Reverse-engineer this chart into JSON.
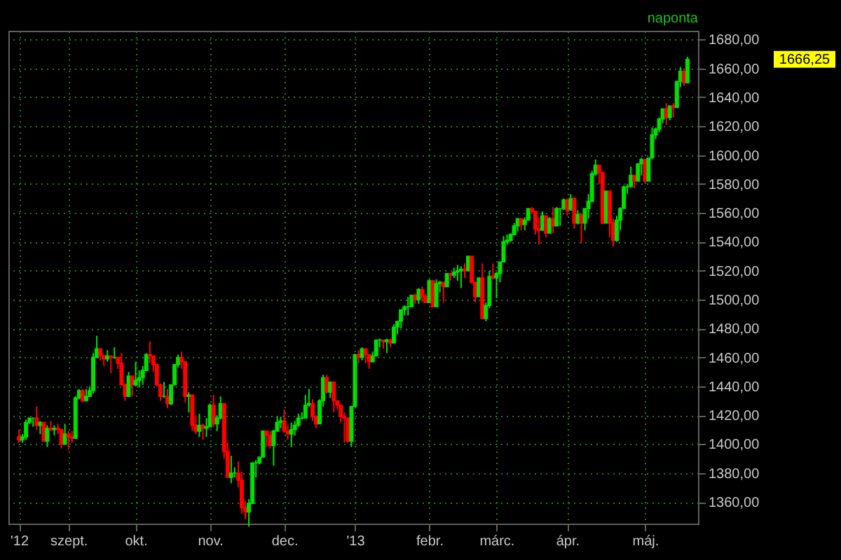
{
  "chart_data": {
    "type": "candlestick",
    "categories": [
      "'12",
      null,
      null,
      null,
      null,
      null,
      null,
      null,
      null,
      null,
      null,
      null,
      null,
      null,
      "szept.",
      null,
      null,
      null,
      null,
      null,
      null,
      null,
      null,
      null,
      null,
      null,
      null,
      null,
      null,
      null,
      null,
      null,
      null,
      "okt.",
      null,
      null,
      null,
      null,
      null,
      null,
      null,
      null,
      null,
      null,
      null,
      null,
      null,
      null,
      null,
      null,
      null,
      null,
      null,
      null,
      "nov.",
      null,
      null,
      null,
      null,
      null,
      null,
      null,
      null,
      null,
      null,
      null,
      null,
      null,
      null,
      null,
      null,
      null,
      null,
      null,
      null,
      "dec.",
      null,
      null,
      null,
      null,
      null,
      null,
      null,
      null,
      null,
      null,
      null,
      null,
      null,
      null,
      null,
      null,
      null,
      null,
      null,
      "'13",
      null,
      null,
      null,
      null,
      null,
      null,
      null,
      null,
      null,
      null,
      null,
      null,
      null,
      null,
      null,
      null,
      null,
      null,
      null,
      null,
      "febr.",
      null,
      null,
      null,
      null,
      null,
      null,
      null,
      null,
      null,
      null,
      null,
      null,
      null,
      null,
      null,
      null,
      null,
      null,
      "márc.",
      null,
      null,
      null,
      null,
      null,
      null,
      null,
      null,
      null,
      null,
      null,
      null,
      null,
      null,
      null,
      null,
      null,
      null,
      null,
      "ápr.",
      null,
      null,
      null,
      null,
      null,
      null,
      null,
      null,
      null,
      null,
      null,
      null,
      null,
      null,
      null,
      null,
      null,
      null,
      null,
      null,
      null,
      "máj.",
      null,
      null,
      null,
      null,
      null,
      null,
      null,
      null,
      null,
      null,
      null,
      null
    ],
    "ohlc": [
      [
        1405,
        1410,
        1401,
        1403
      ],
      [
        1403,
        1407,
        1401,
        1405
      ],
      [
        1405,
        1417,
        1403,
        1415
      ],
      [
        1415,
        1418,
        1414,
        1418
      ],
      [
        1418,
        1418,
        1412,
        1418
      ],
      [
        1418,
        1426,
        1410,
        1413
      ],
      [
        1413,
        1416,
        1407,
        1415
      ],
      [
        1415,
        1415,
        1402,
        1402
      ],
      [
        1402,
        1413,
        1398,
        1411
      ],
      [
        1411,
        1416,
        1409,
        1410
      ],
      [
        1410,
        1413,
        1406,
        1411
      ],
      [
        1411,
        1414,
        1407,
        1410
      ],
      [
        1410,
        1410,
        1397,
        1400
      ],
      [
        1400,
        1414,
        1400,
        1407
      ],
      [
        1407,
        1409,
        1396,
        1405
      ],
      [
        1405,
        1409,
        1401,
        1404
      ],
      [
        1404,
        1433,
        1404,
        1432
      ],
      [
        1432,
        1438,
        1431,
        1437
      ],
      [
        1437,
        1438,
        1429,
        1430
      ],
      [
        1430,
        1438,
        1430,
        1433
      ],
      [
        1433,
        1440,
        1433,
        1437
      ],
      [
        1437,
        1463,
        1435,
        1460
      ],
      [
        1460,
        1475,
        1460,
        1466
      ],
      [
        1466,
        1466,
        1458,
        1461
      ],
      [
        1461,
        1462,
        1454,
        1459
      ],
      [
        1459,
        1465,
        1457,
        1461
      ],
      [
        1461,
        1461,
        1449,
        1460
      ],
      [
        1460,
        1467,
        1459,
        1460
      ],
      [
        1460,
        1460,
        1452,
        1456
      ],
      [
        1456,
        1463,
        1441,
        1441
      ],
      [
        1441,
        1442,
        1430,
        1433
      ],
      [
        1433,
        1450,
        1433,
        1447
      ],
      [
        1447,
        1447,
        1433,
        1441
      ],
      [
        1441,
        1457,
        1440,
        1444
      ],
      [
        1444,
        1451,
        1439,
        1446
      ],
      [
        1446,
        1454,
        1441,
        1451
      ],
      [
        1451,
        1463,
        1451,
        1462
      ],
      [
        1462,
        1471,
        1456,
        1461
      ],
      [
        1461,
        1461,
        1450,
        1455
      ],
      [
        1455,
        1455,
        1440,
        1441
      ],
      [
        1441,
        1442,
        1430,
        1433
      ],
      [
        1433,
        1443,
        1432,
        1433
      ],
      [
        1433,
        1438,
        1425,
        1428
      ],
      [
        1428,
        1441,
        1427,
        1441
      ],
      [
        1441,
        1455,
        1441,
        1455
      ],
      [
        1455,
        1462,
        1453,
        1460
      ],
      [
        1460,
        1464,
        1452,
        1457
      ],
      [
        1457,
        1457,
        1429,
        1433
      ],
      [
        1433,
        1436,
        1422,
        1434
      ],
      [
        1434,
        1434,
        1409,
        1413
      ],
      [
        1413,
        1420,
        1407,
        1409
      ],
      [
        1409,
        1421,
        1405,
        1413
      ],
      [
        1413,
        1414,
        1403,
        1411
      ],
      [
        1411,
        1418,
        1405,
        1412
      ],
      [
        1412,
        1428,
        1412,
        1427
      ],
      [
        1427,
        1434,
        1412,
        1414
      ],
      [
        1414,
        1420,
        1409,
        1418
      ],
      [
        1418,
        1433,
        1417,
        1428
      ],
      [
        1428,
        1428,
        1390,
        1395
      ],
      [
        1395,
        1401,
        1377,
        1377
      ],
      [
        1377,
        1392,
        1373,
        1380
      ],
      [
        1380,
        1384,
        1377,
        1380
      ],
      [
        1380,
        1388,
        1370,
        1375
      ],
      [
        1375,
        1381,
        1352,
        1356
      ],
      [
        1356,
        1361,
        1348,
        1353
      ],
      [
        1353,
        1362,
        1343,
        1359
      ],
      [
        1359,
        1387,
        1359,
        1387
      ],
      [
        1387,
        1389,
        1377,
        1387
      ],
      [
        1387,
        1391,
        1386,
        1391
      ],
      [
        1391,
        1409,
        1391,
        1409
      ],
      [
        1409,
        1409,
        1398,
        1406
      ],
      [
        1406,
        1409,
        1397,
        1399
      ],
      [
        1399,
        1410,
        1385,
        1409
      ],
      [
        1409,
        1419,
        1409,
        1415
      ],
      [
        1415,
        1419,
        1411,
        1416
      ],
      [
        1416,
        1424,
        1408,
        1409
      ],
      [
        1409,
        1413,
        1403,
        1407
      ],
      [
        1407,
        1415,
        1398,
        1410
      ],
      [
        1410,
        1416,
        1406,
        1413
      ],
      [
        1413,
        1421,
        1412,
        1418
      ],
      [
        1418,
        1422,
        1417,
        1418
      ],
      [
        1418,
        1434,
        1418,
        1427
      ],
      [
        1427,
        1438,
        1426,
        1428
      ],
      [
        1428,
        1431,
        1416,
        1419
      ],
      [
        1419,
        1420,
        1411,
        1414
      ],
      [
        1414,
        1431,
        1414,
        1430
      ],
      [
        1430,
        1448,
        1426,
        1446
      ],
      [
        1446,
        1448,
        1435,
        1436
      ],
      [
        1436,
        1443,
        1432,
        1443
      ],
      [
        1443,
        1443,
        1422,
        1430
      ],
      [
        1430,
        1430,
        1424,
        1427
      ],
      [
        1427,
        1427,
        1415,
        1419
      ],
      [
        1419,
        1422,
        1401,
        1418
      ],
      [
        1418,
        1418,
        1401,
        1402
      ],
      [
        1402,
        1426,
        1398,
        1426
      ],
      [
        1426,
        1462,
        1426,
        1462
      ],
      [
        1462,
        1465,
        1456,
        1460
      ],
      [
        1460,
        1467,
        1458,
        1466
      ],
      [
        1466,
        1466,
        1456,
        1462
      ],
      [
        1462,
        1462,
        1452,
        1457
      ],
      [
        1457,
        1464,
        1457,
        1461
      ],
      [
        1461,
        1472,
        1461,
        1472
      ],
      [
        1472,
        1473,
        1467,
        1472
      ],
      [
        1472,
        1472,
        1466,
        1471
      ],
      [
        1471,
        1473,
        1463,
        1472
      ],
      [
        1472,
        1473,
        1467,
        1470
      ],
      [
        1470,
        1483,
        1470,
        1481
      ],
      [
        1481,
        1485,
        1476,
        1485
      ],
      [
        1485,
        1493,
        1480,
        1493
      ],
      [
        1493,
        1496,
        1489,
        1495
      ],
      [
        1495,
        1502,
        1489,
        1495
      ],
      [
        1495,
        1503,
        1495,
        1503
      ],
      [
        1503,
        1504,
        1497,
        1500
      ],
      [
        1500,
        1508,
        1497,
        1507
      ],
      [
        1507,
        1509,
        1498,
        1502
      ],
      [
        1502,
        1504,
        1498,
        1498
      ],
      [
        1498,
        1514,
        1498,
        1513
      ],
      [
        1513,
        1513,
        1495,
        1495
      ],
      [
        1495,
        1514,
        1495,
        1511
      ],
      [
        1511,
        1513,
        1505,
        1512
      ],
      [
        1512,
        1512,
        1498,
        1509
      ],
      [
        1509,
        1518,
        1509,
        1518
      ],
      [
        1518,
        1518,
        1513,
        1517
      ],
      [
        1517,
        1522,
        1515,
        1519
      ],
      [
        1519,
        1524,
        1513,
        1520
      ],
      [
        1520,
        1523,
        1508,
        1521
      ],
      [
        1521,
        1525,
        1515,
        1520
      ],
      [
        1520,
        1530,
        1520,
        1530
      ],
      [
        1530,
        1530,
        1511,
        1512
      ],
      [
        1512,
        1512,
        1498,
        1502
      ],
      [
        1502,
        1515,
        1502,
        1515
      ],
      [
        1515,
        1525,
        1487,
        1487
      ],
      [
        1487,
        1498,
        1485,
        1496
      ],
      [
        1496,
        1520,
        1494,
        1516
      ],
      [
        1516,
        1525,
        1514,
        1515
      ],
      [
        1515,
        1519,
        1501,
        1518
      ],
      [
        1518,
        1526,
        1512,
        1526
      ],
      [
        1526,
        1544,
        1526,
        1540
      ],
      [
        1540,
        1545,
        1538,
        1541
      ],
      [
        1541,
        1546,
        1540,
        1545
      ],
      [
        1545,
        1553,
        1545,
        1551
      ],
      [
        1551,
        1556,
        1547,
        1556
      ],
      [
        1556,
        1556,
        1548,
        1552
      ],
      [
        1552,
        1557,
        1548,
        1555
      ],
      [
        1555,
        1563,
        1555,
        1563
      ],
      [
        1563,
        1564,
        1559,
        1561
      ],
      [
        1561,
        1561,
        1545,
        1549
      ],
      [
        1549,
        1557,
        1538,
        1548
      ],
      [
        1548,
        1561,
        1548,
        1558
      ],
      [
        1558,
        1558,
        1543,
        1546
      ],
      [
        1546,
        1557,
        1546,
        1556
      ],
      [
        1556,
        1564,
        1546,
        1551
      ],
      [
        1551,
        1564,
        1551,
        1563
      ],
      [
        1563,
        1563,
        1551,
        1563
      ],
      [
        1563,
        1570,
        1562,
        1569
      ],
      [
        1569,
        1570,
        1558,
        1562
      ],
      [
        1562,
        1573,
        1562,
        1570
      ],
      [
        1570,
        1571,
        1549,
        1553
      ],
      [
        1553,
        1562,
        1552,
        1559
      ],
      [
        1559,
        1559,
        1539,
        1553
      ],
      [
        1553,
        1563,
        1548,
        1563
      ],
      [
        1563,
        1573,
        1556,
        1568
      ],
      [
        1568,
        1589,
        1568,
        1587
      ],
      [
        1587,
        1597,
        1586,
        1593
      ],
      [
        1593,
        1593,
        1580,
        1588
      ],
      [
        1588,
        1588,
        1552,
        1553
      ],
      [
        1553,
        1575,
        1553,
        1575
      ],
      [
        1575,
        1575,
        1543,
        1553
      ],
      [
        1553,
        1556,
        1537,
        1541
      ],
      [
        1541,
        1558,
        1540,
        1555
      ],
      [
        1555,
        1564,
        1548,
        1563
      ],
      [
        1563,
        1579,
        1563,
        1578
      ],
      [
        1578,
        1580,
        1573,
        1578
      ],
      [
        1578,
        1592,
        1578,
        1586
      ],
      [
        1586,
        1586,
        1577,
        1582
      ],
      [
        1582,
        1594,
        1582,
        1594
      ],
      [
        1594,
        1598,
        1586,
        1597
      ],
      [
        1597,
        1597,
        1581,
        1582
      ],
      [
        1582,
        1598,
        1582,
        1598
      ],
      [
        1598,
        1619,
        1598,
        1614
      ],
      [
        1614,
        1619,
        1611,
        1618
      ],
      [
        1618,
        1626,
        1616,
        1625
      ],
      [
        1625,
        1632,
        1622,
        1632
      ],
      [
        1632,
        1636,
        1621,
        1626
      ],
      [
        1626,
        1634,
        1624,
        1634
      ],
      [
        1634,
        1636,
        1626,
        1633
      ],
      [
        1633,
        1651,
        1633,
        1651
      ],
      [
        1651,
        1661,
        1647,
        1658
      ],
      [
        1658,
        1660,
        1648,
        1650
      ],
      [
        1650,
        1668,
        1650,
        1666.25
      ]
    ],
    "colors": [
      "#ff0000",
      "#00e000",
      "#00e000",
      "#00e000",
      "#00e000",
      "#ff0000",
      "#00e000",
      "#ff0000",
      "#00e000",
      "#ff0000",
      "#00e000",
      "#ff0000",
      "#ff0000",
      "#00e000",
      "#ff0000",
      "#ff0000",
      "#00e000",
      "#00e000",
      "#ff0000",
      "#00e000",
      "#00e000",
      "#00e000",
      "#00e000",
      "#ff0000",
      "#ff0000",
      "#00e000",
      "#ff0000",
      "#00e000",
      "#ff0000",
      "#ff0000",
      "#ff0000",
      "#00e000",
      "#ff0000",
      "#00e000",
      "#00e000",
      "#00e000",
      "#00e000",
      "#ff0000",
      "#ff0000",
      "#ff0000",
      "#ff0000",
      "#00e000",
      "#ff0000",
      "#00e000",
      "#00e000",
      "#00e000",
      "#ff0000",
      "#ff0000",
      "#00e000",
      "#ff0000",
      "#ff0000",
      "#00e000",
      "#ff0000",
      "#00e000",
      "#00e000",
      "#ff0000",
      "#00e000",
      "#00e000",
      "#ff0000",
      "#ff0000",
      "#00e000",
      "#00e000",
      "#ff0000",
      "#ff0000",
      "#ff0000",
      "#00e000",
      "#00e000",
      "#00e000",
      "#00e000",
      "#00e000",
      "#ff0000",
      "#ff0000",
      "#00e000",
      "#00e000",
      "#00e000",
      "#ff0000",
      "#ff0000",
      "#00e000",
      "#00e000",
      "#00e000",
      "#00e000",
      "#00e000",
      "#00e000",
      "#ff0000",
      "#ff0000",
      "#00e000",
      "#00e000",
      "#ff0000",
      "#00e000",
      "#ff0000",
      "#ff0000",
      "#ff0000",
      "#ff0000",
      "#ff0000",
      "#00e000",
      "#00e000",
      "#ff0000",
      "#00e000",
      "#ff0000",
      "#ff0000",
      "#00e000",
      "#00e000",
      "#00e000",
      "#ff0000",
      "#00e000",
      "#ff0000",
      "#00e000",
      "#00e000",
      "#00e000",
      "#00e000",
      "#00e000",
      "#00e000",
      "#ff0000",
      "#00e000",
      "#ff0000",
      "#ff0000",
      "#00e000",
      "#ff0000",
      "#00e000",
      "#00e000",
      "#ff0000",
      "#00e000",
      "#ff0000",
      "#00e000",
      "#00e000",
      "#00e000",
      "#ff0000",
      "#00e000",
      "#ff0000",
      "#ff0000",
      "#00e000",
      "#ff0000",
      "#00e000",
      "#00e000",
      "#ff0000",
      "#00e000",
      "#00e000",
      "#00e000",
      "#00e000",
      "#00e000",
      "#00e000",
      "#00e000",
      "#ff0000",
      "#00e000",
      "#00e000",
      "#ff0000",
      "#ff0000",
      "#ff0000",
      "#00e000",
      "#ff0000",
      "#00e000",
      "#ff0000",
      "#00e000",
      "#00e000",
      "#00e000",
      "#ff0000",
      "#00e000",
      "#ff0000",
      "#00e000",
      "#ff0000",
      "#00e000",
      "#00e000",
      "#00e000",
      "#00e000",
      "#ff0000",
      "#ff0000",
      "#00e000",
      "#ff0000",
      "#ff0000",
      "#00e000",
      "#00e000",
      "#00e000",
      "#00e000",
      "#00e000",
      "#ff0000",
      "#00e000",
      "#00e000",
      "#ff0000",
      "#00e000",
      "#00e000",
      "#00e000",
      "#00e000",
      "#00e000",
      "#ff0000",
      "#00e000",
      "#ff0000",
      "#00e000",
      "#00e000",
      "#ff0000",
      "#00e000"
    ],
    "ylim": [
      1345,
      1686
    ],
    "yticks": [
      {
        "value": 1360,
        "label": "1360,00"
      },
      {
        "value": 1380,
        "label": "1380,00"
      },
      {
        "value": 1400,
        "label": "1400,00"
      },
      {
        "value": 1420,
        "label": "1420,00"
      },
      {
        "value": 1440,
        "label": "1440,00"
      },
      {
        "value": 1460,
        "label": "1460,00"
      },
      {
        "value": 1480,
        "label": "1480,00"
      },
      {
        "value": 1500,
        "label": "1500,00"
      },
      {
        "value": 1520,
        "label": "1520,00"
      },
      {
        "value": 1540,
        "label": "1540,00"
      },
      {
        "value": 1560,
        "label": "1560,00"
      },
      {
        "value": 1580,
        "label": "1580,00"
      },
      {
        "value": 1600,
        "label": "1600,00"
      },
      {
        "value": 1620,
        "label": "1620,00"
      },
      {
        "value": 1640,
        "label": "1640,00"
      },
      {
        "value": 1660,
        "label": "1660,00"
      },
      {
        "value": 1680,
        "label": "1680,00"
      }
    ],
    "grid": true,
    "annotations": [
      "naponta",
      "1666,25"
    ]
  }
}
